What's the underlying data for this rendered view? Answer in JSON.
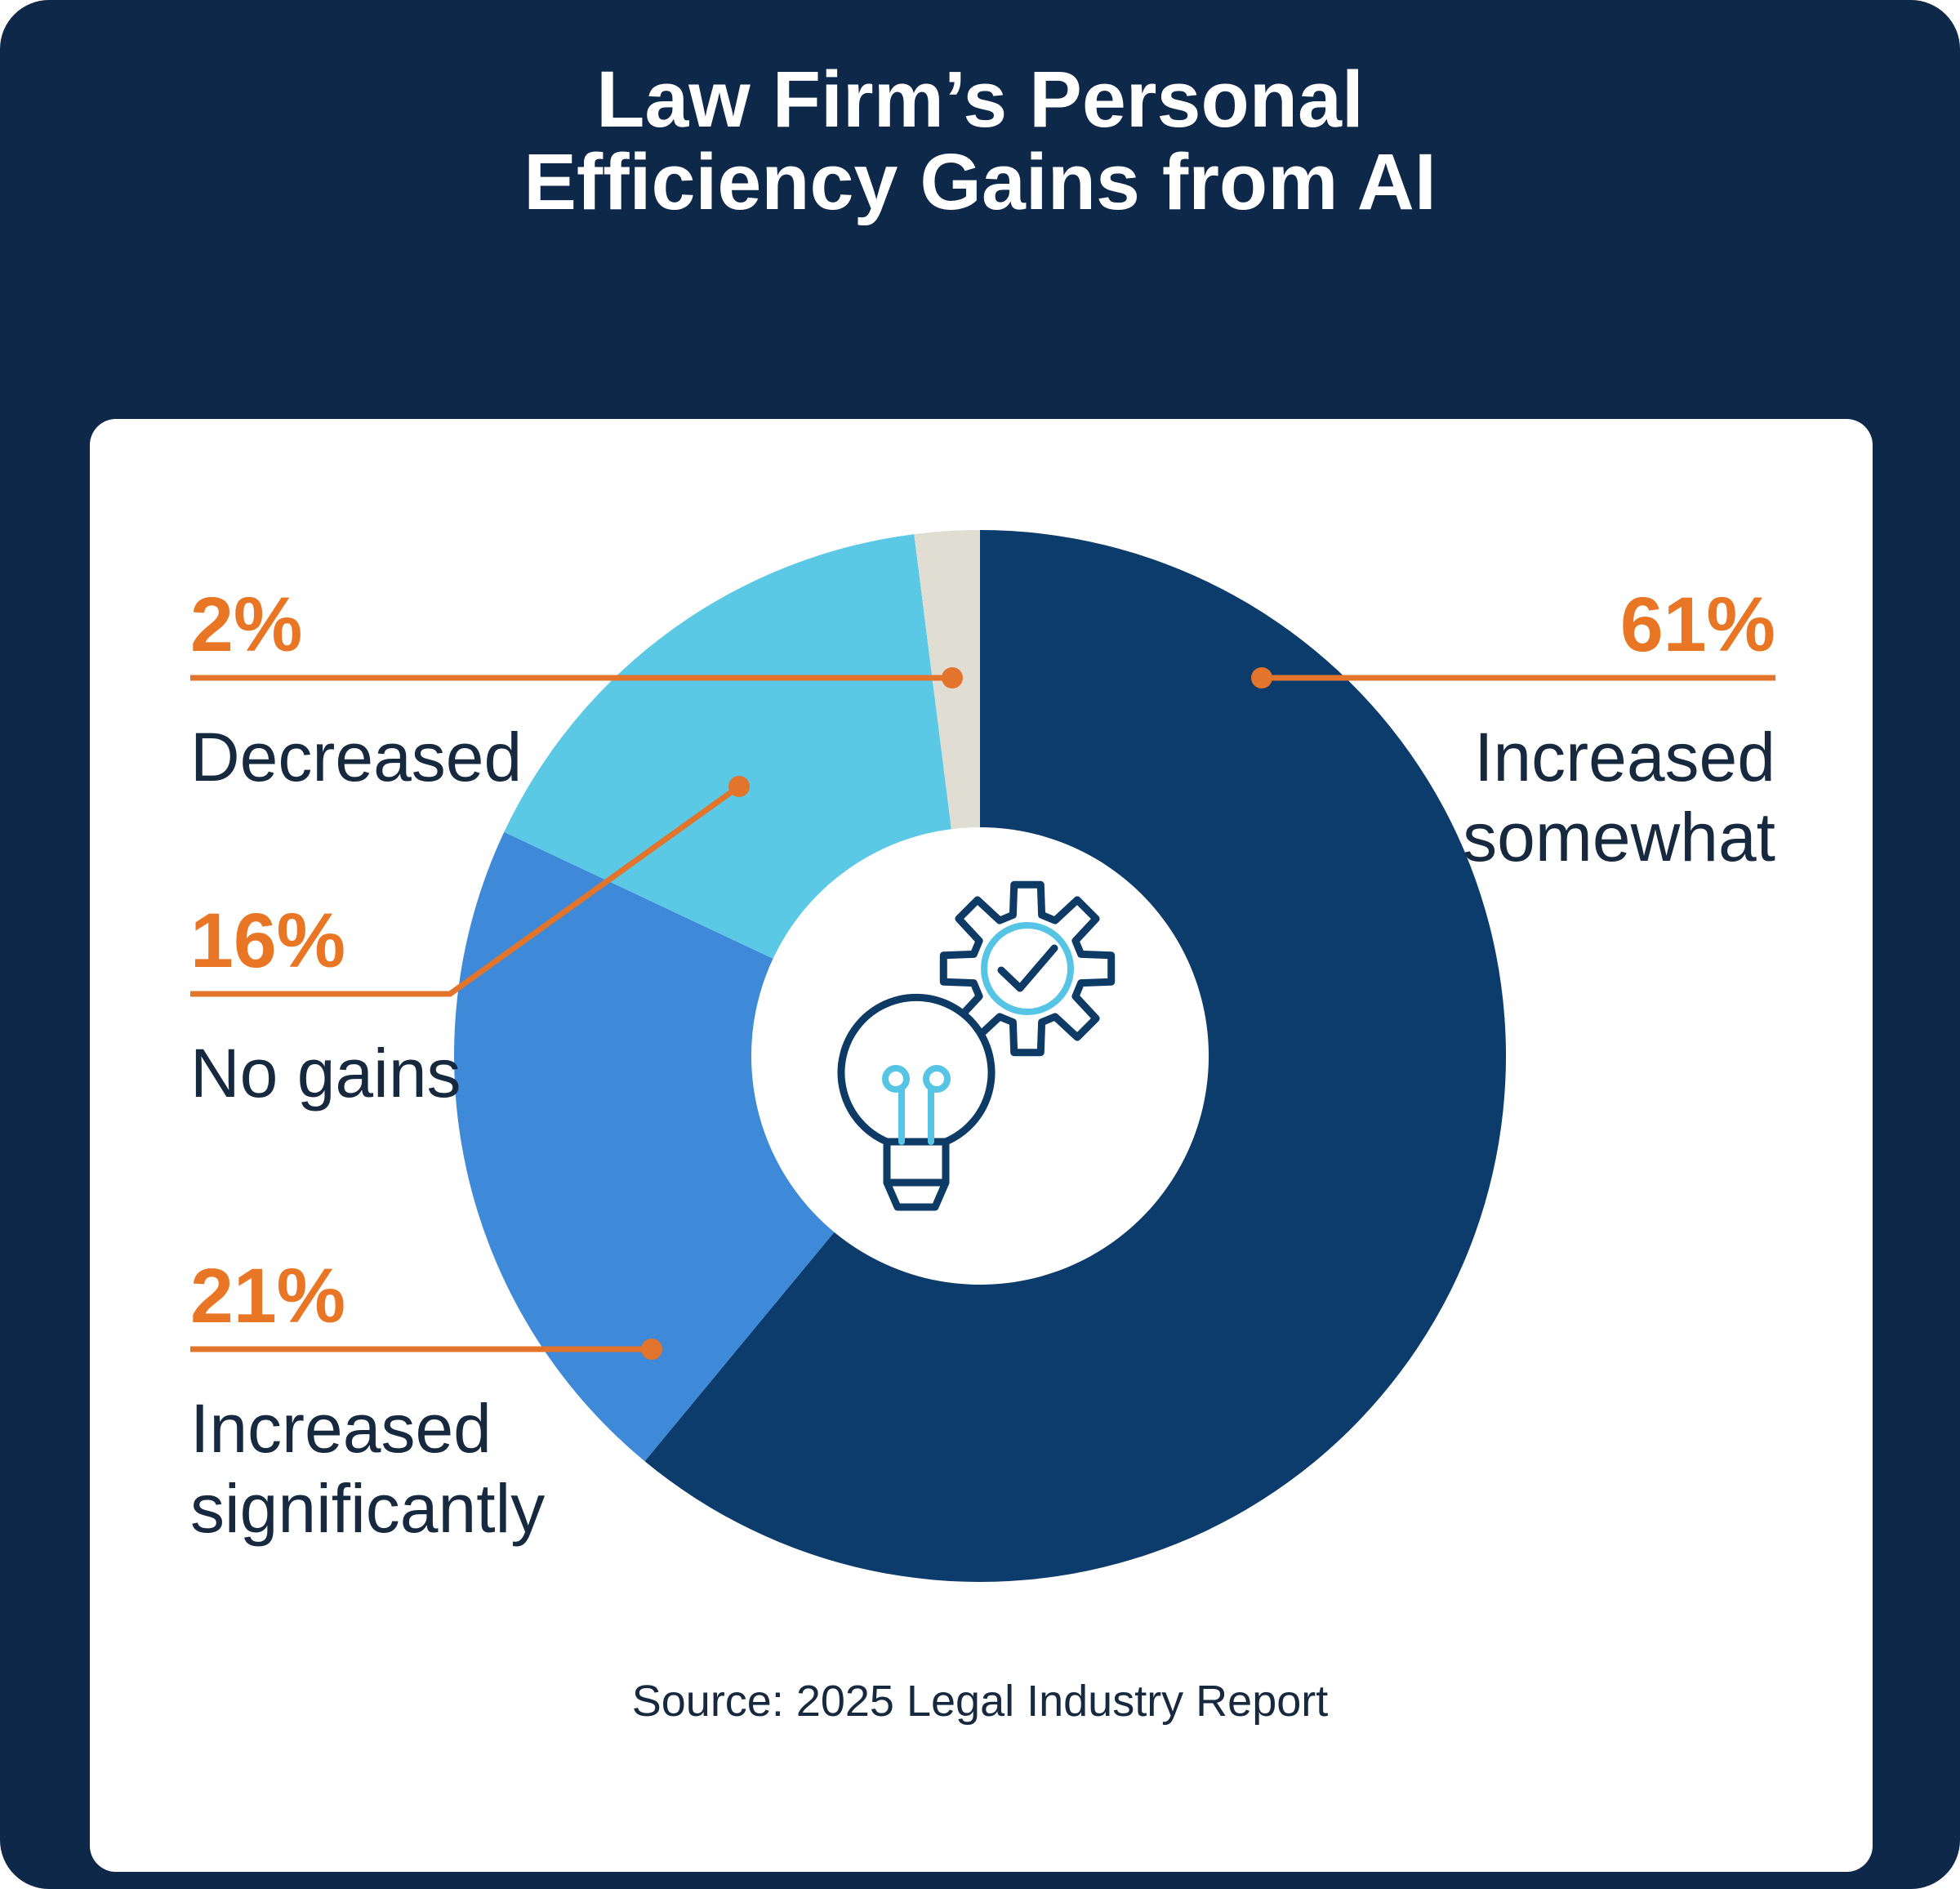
{
  "title": {
    "line1": "Law Firm’s Personal",
    "line2": "Efficiency Gains from AI"
  },
  "source": "Source: 2025 Legal Industry Report",
  "colors": {
    "background": "#0E284A",
    "card": "#FFFFFF",
    "title_text": "#FFFFFF",
    "accent_orange": "#E2742B",
    "pct_orange": "#E87625",
    "label_dark": "#16293E",
    "icon_navy": "#0E3A66",
    "icon_cyan": "#56C5E5"
  },
  "center_icon": "lightbulb-and-gear-with-checkmark-icon",
  "chart_data": {
    "type": "pie",
    "subtype": "donut",
    "title": "Law Firm's Personal Efficiency Gains from AI",
    "units": "%",
    "start_angle_deg": 0,
    "clockwise": true,
    "legend_position": "callouts",
    "grid": false,
    "segments": [
      {
        "label": "Increased somewhat",
        "value": 61,
        "pct": "61%",
        "callout": "Increased\nsomewhat",
        "color": "#0C3C6C"
      },
      {
        "label": "Increased significantly",
        "value": 21,
        "pct": "21%",
        "callout": "Increased\nsignificantly",
        "color": "#3E89D8"
      },
      {
        "label": "No gains",
        "value": 16,
        "pct": "16%",
        "callout": "No gains",
        "color": "#5BC8E6"
      },
      {
        "label": "Decreased",
        "value": 2,
        "pct": "2%",
        "callout": "Decreased",
        "color": "#E0DED3"
      }
    ],
    "source": "Source: 2025 Legal Industry Report"
  }
}
